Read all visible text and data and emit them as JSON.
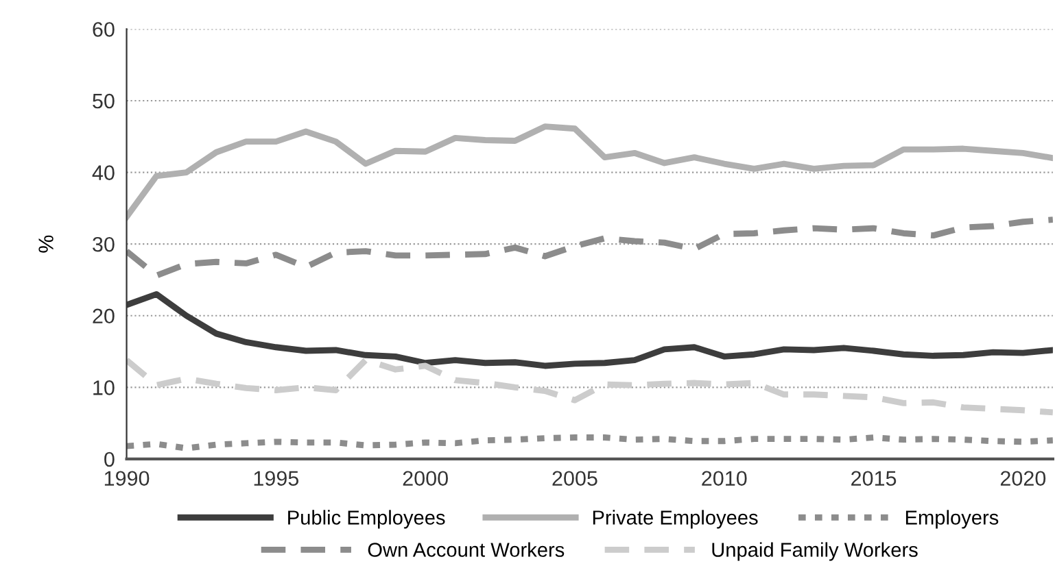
{
  "chart_data": {
    "type": "line",
    "ylabel": "%",
    "x": [
      1990,
      1991,
      1992,
      1993,
      1994,
      1995,
      1996,
      1997,
      1998,
      1999,
      2000,
      2001,
      2002,
      2003,
      2004,
      2005,
      2006,
      2007,
      2008,
      2009,
      2010,
      2011,
      2012,
      2013,
      2014,
      2015,
      2016,
      2017,
      2018,
      2019,
      2020,
      2021
    ],
    "series": [
      {
        "name": "Public Employees",
        "color": "#3d3d3d",
        "line_style": "solid",
        "values": [
          21.5,
          23,
          20,
          17.5,
          16.3,
          15.6,
          15.1,
          15.2,
          14.5,
          14.3,
          13.4,
          13.8,
          13.4,
          13.5,
          13.0,
          13.3,
          13.4,
          13.8,
          15.3,
          15.6,
          14.3,
          14.6,
          15.3,
          15.2,
          15.5,
          15.1,
          14.6,
          14.4,
          14.5,
          14.9,
          14.8,
          15.2
        ]
      },
      {
        "name": "Private Employees",
        "color": "#b0b0b0",
        "line_style": "solid",
        "values": [
          33.8,
          39.5,
          40,
          42.8,
          44.3,
          44.3,
          45.7,
          44.3,
          41.2,
          43,
          42.9,
          44.8,
          44.5,
          44.4,
          46.4,
          46.1,
          42.1,
          42.7,
          41.3,
          42.1,
          41.2,
          40.5,
          41.2,
          40.5,
          40.9,
          41,
          43.2,
          43.2,
          43.3,
          43,
          42.7,
          42
        ]
      },
      {
        "name": "Employers",
        "color": "#8c8c8c",
        "line_style": "dotted",
        "values": [
          1.8,
          2.1,
          1.5,
          2,
          2.2,
          2.4,
          2.3,
          2.3,
          1.9,
          2,
          2.3,
          2.2,
          2.6,
          2.7,
          2.9,
          3,
          3,
          2.7,
          2.8,
          2.5,
          2.5,
          2.8,
          2.8,
          2.8,
          2.7,
          3,
          2.7,
          2.8,
          2.7,
          2.5,
          2.4,
          2.6
        ]
      },
      {
        "name": "Own Account Workers",
        "color": "#8c8c8c",
        "line_style": "dashed",
        "values": [
          29,
          25.6,
          27.2,
          27.5,
          27.3,
          28.5,
          26.8,
          28.8,
          29,
          28.4,
          28.4,
          28.5,
          28.6,
          29.5,
          28.3,
          29.7,
          30.8,
          30.4,
          30.2,
          29.3,
          31.4,
          31.5,
          31.9,
          32.2,
          32,
          32.2,
          31.5,
          31.2,
          32.3,
          32.5,
          33.1,
          33.4
        ]
      },
      {
        "name": "Unpaid Family Workers",
        "color": "#cccccc",
        "line_style": "dashed",
        "values": [
          13.8,
          10.3,
          11.2,
          10.5,
          9.9,
          9.6,
          10,
          9.6,
          13.8,
          12.5,
          13,
          11,
          10.6,
          10,
          9.5,
          8.2,
          10.4,
          10.3,
          10.5,
          10.6,
          10.4,
          10.6,
          9,
          9,
          8.8,
          8.6,
          7.8,
          7.9,
          7.2,
          7,
          6.8,
          6.5
        ]
      }
    ],
    "xlim": [
      1990,
      2021
    ],
    "xticks": [
      1990,
      1995,
      2000,
      2005,
      2010,
      2015,
      2020
    ],
    "ylim": [
      0,
      60
    ],
    "yticks": [
      0,
      10,
      20,
      30,
      40,
      50,
      60
    ],
    "grid": "y",
    "legend": "bottom"
  }
}
